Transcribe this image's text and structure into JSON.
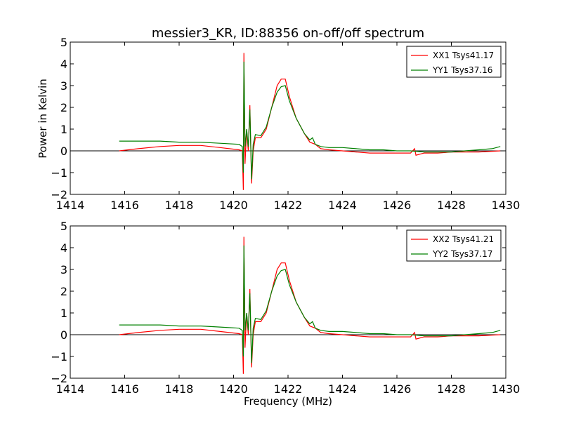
{
  "chart_data": [
    {
      "type": "line",
      "title": "messier3_KR, ID:88356 on-off/off spectrum",
      "xlabel": "",
      "ylabel": "Power in Kelvin",
      "xlim": [
        1414,
        1430
      ],
      "ylim": [
        -2,
        5
      ],
      "xticks": [
        1414,
        1416,
        1418,
        1420,
        1422,
        1424,
        1426,
        1428,
        1430
      ],
      "yticks": [
        -2,
        -1,
        0,
        1,
        2,
        3,
        4,
        5
      ],
      "grid": false,
      "legend_position": "top-right",
      "series": [
        {
          "name": "XX1 Tsys41.17",
          "color": "#ff0000",
          "points": [
            [
              1415.8,
              0.0
            ],
            [
              1416.5,
              0.1
            ],
            [
              1417.3,
              0.2
            ],
            [
              1418.0,
              0.25
            ],
            [
              1418.8,
              0.25
            ],
            [
              1419.5,
              0.15
            ],
            [
              1420.2,
              0.05
            ],
            [
              1420.32,
              0.0
            ],
            [
              1420.36,
              -1.8
            ],
            [
              1420.38,
              4.5
            ],
            [
              1420.42,
              -0.6
            ],
            [
              1420.48,
              1.0
            ],
            [
              1420.54,
              0.0
            ],
            [
              1420.6,
              2.1
            ],
            [
              1420.66,
              -1.5
            ],
            [
              1420.72,
              0.0
            ],
            [
              1420.8,
              0.6
            ],
            [
              1421.0,
              0.6
            ],
            [
              1421.2,
              1.0
            ],
            [
              1421.4,
              2.0
            ],
            [
              1421.6,
              3.0
            ],
            [
              1421.75,
              3.3
            ],
            [
              1421.9,
              3.3
            ],
            [
              1422.05,
              2.5
            ],
            [
              1422.3,
              1.5
            ],
            [
              1422.6,
              0.8
            ],
            [
              1422.8,
              0.4
            ],
            [
              1423.0,
              0.3
            ],
            [
              1423.2,
              0.1
            ],
            [
              1423.5,
              0.05
            ],
            [
              1424.0,
              0.0
            ],
            [
              1424.5,
              -0.05
            ],
            [
              1425.0,
              -0.1
            ],
            [
              1425.5,
              -0.1
            ],
            [
              1426.0,
              -0.1
            ],
            [
              1426.5,
              -0.1
            ],
            [
              1426.65,
              0.1
            ],
            [
              1426.7,
              -0.2
            ],
            [
              1427.0,
              -0.1
            ],
            [
              1427.5,
              -0.1
            ],
            [
              1428.0,
              -0.05
            ],
            [
              1428.5,
              -0.05
            ],
            [
              1429.0,
              -0.05
            ],
            [
              1429.8,
              0.0
            ]
          ]
        },
        {
          "name": "YY1 Tsys37.16",
          "color": "#008000",
          "points": [
            [
              1415.8,
              0.45
            ],
            [
              1416.5,
              0.45
            ],
            [
              1417.3,
              0.45
            ],
            [
              1418.0,
              0.4
            ],
            [
              1418.8,
              0.4
            ],
            [
              1419.5,
              0.35
            ],
            [
              1420.2,
              0.3
            ],
            [
              1420.32,
              0.2
            ],
            [
              1420.36,
              -1.0
            ],
            [
              1420.38,
              4.1
            ],
            [
              1420.42,
              0.2
            ],
            [
              1420.48,
              1.0
            ],
            [
              1420.54,
              0.2
            ],
            [
              1420.6,
              1.9
            ],
            [
              1420.66,
              -1.3
            ],
            [
              1420.72,
              0.3
            ],
            [
              1420.8,
              0.75
            ],
            [
              1421.0,
              0.7
            ],
            [
              1421.2,
              1.1
            ],
            [
              1421.4,
              2.0
            ],
            [
              1421.6,
              2.7
            ],
            [
              1421.75,
              2.95
            ],
            [
              1421.9,
              3.0
            ],
            [
              1422.05,
              2.3
            ],
            [
              1422.3,
              1.5
            ],
            [
              1422.6,
              0.8
            ],
            [
              1422.8,
              0.5
            ],
            [
              1422.9,
              0.6
            ],
            [
              1423.0,
              0.3
            ],
            [
              1423.2,
              0.2
            ],
            [
              1423.5,
              0.15
            ],
            [
              1424.0,
              0.15
            ],
            [
              1424.5,
              0.1
            ],
            [
              1425.0,
              0.05
            ],
            [
              1425.5,
              0.05
            ],
            [
              1426.0,
              0.0
            ],
            [
              1426.5,
              0.0
            ],
            [
              1427.0,
              -0.05
            ],
            [
              1427.5,
              -0.05
            ],
            [
              1428.0,
              -0.05
            ],
            [
              1428.5,
              0.0
            ],
            [
              1429.0,
              0.05
            ],
            [
              1429.5,
              0.1
            ],
            [
              1429.8,
              0.2
            ]
          ]
        }
      ]
    },
    {
      "type": "line",
      "title": "",
      "xlabel": "Frequency (MHz)",
      "ylabel": "",
      "xlim": [
        1414,
        1430
      ],
      "ylim": [
        -2,
        5
      ],
      "xticks": [
        1414,
        1416,
        1418,
        1420,
        1422,
        1424,
        1426,
        1428,
        1430
      ],
      "yticks": [
        -2,
        -1,
        0,
        1,
        2,
        3,
        4,
        5
      ],
      "grid": false,
      "legend_position": "top-right",
      "series": [
        {
          "name": "XX2 Tsys41.21",
          "color": "#ff0000",
          "points": [
            [
              1415.8,
              0.0
            ],
            [
              1416.5,
              0.1
            ],
            [
              1417.3,
              0.2
            ],
            [
              1418.0,
              0.25
            ],
            [
              1418.8,
              0.25
            ],
            [
              1419.5,
              0.15
            ],
            [
              1420.2,
              0.05
            ],
            [
              1420.32,
              0.0
            ],
            [
              1420.36,
              -1.8
            ],
            [
              1420.38,
              4.5
            ],
            [
              1420.42,
              -0.6
            ],
            [
              1420.48,
              1.0
            ],
            [
              1420.54,
              0.0
            ],
            [
              1420.6,
              2.1
            ],
            [
              1420.66,
              -1.5
            ],
            [
              1420.72,
              0.0
            ],
            [
              1420.8,
              0.6
            ],
            [
              1421.0,
              0.6
            ],
            [
              1421.2,
              1.0
            ],
            [
              1421.4,
              2.0
            ],
            [
              1421.6,
              3.0
            ],
            [
              1421.75,
              3.3
            ],
            [
              1421.9,
              3.3
            ],
            [
              1422.05,
              2.5
            ],
            [
              1422.3,
              1.5
            ],
            [
              1422.6,
              0.8
            ],
            [
              1422.8,
              0.4
            ],
            [
              1423.0,
              0.3
            ],
            [
              1423.2,
              0.1
            ],
            [
              1423.5,
              0.05
            ],
            [
              1424.0,
              0.0
            ],
            [
              1424.5,
              -0.05
            ],
            [
              1425.0,
              -0.1
            ],
            [
              1425.5,
              -0.1
            ],
            [
              1426.0,
              -0.1
            ],
            [
              1426.5,
              -0.1
            ],
            [
              1426.65,
              0.1
            ],
            [
              1426.7,
              -0.2
            ],
            [
              1427.0,
              -0.1
            ],
            [
              1427.5,
              -0.1
            ],
            [
              1428.0,
              -0.05
            ],
            [
              1428.5,
              -0.05
            ],
            [
              1429.0,
              -0.05
            ],
            [
              1429.8,
              0.0
            ]
          ]
        },
        {
          "name": "YY2 Tsys37.17",
          "color": "#008000",
          "points": [
            [
              1415.8,
              0.45
            ],
            [
              1416.5,
              0.45
            ],
            [
              1417.3,
              0.45
            ],
            [
              1418.0,
              0.4
            ],
            [
              1418.8,
              0.4
            ],
            [
              1419.5,
              0.35
            ],
            [
              1420.2,
              0.3
            ],
            [
              1420.32,
              0.2
            ],
            [
              1420.36,
              -1.0
            ],
            [
              1420.38,
              4.1
            ],
            [
              1420.42,
              0.2
            ],
            [
              1420.48,
              1.0
            ],
            [
              1420.54,
              0.2
            ],
            [
              1420.6,
              1.9
            ],
            [
              1420.66,
              -1.3
            ],
            [
              1420.72,
              0.3
            ],
            [
              1420.8,
              0.75
            ],
            [
              1421.0,
              0.7
            ],
            [
              1421.2,
              1.1
            ],
            [
              1421.4,
              2.0
            ],
            [
              1421.6,
              2.7
            ],
            [
              1421.75,
              2.95
            ],
            [
              1421.9,
              3.0
            ],
            [
              1422.05,
              2.3
            ],
            [
              1422.3,
              1.5
            ],
            [
              1422.6,
              0.8
            ],
            [
              1422.8,
              0.5
            ],
            [
              1422.9,
              0.6
            ],
            [
              1423.0,
              0.3
            ],
            [
              1423.2,
              0.2
            ],
            [
              1423.5,
              0.15
            ],
            [
              1424.0,
              0.15
            ],
            [
              1424.5,
              0.1
            ],
            [
              1425.0,
              0.05
            ],
            [
              1425.5,
              0.05
            ],
            [
              1426.0,
              0.0
            ],
            [
              1426.5,
              0.0
            ],
            [
              1427.0,
              -0.05
            ],
            [
              1427.5,
              -0.05
            ],
            [
              1428.0,
              -0.05
            ],
            [
              1428.5,
              0.0
            ],
            [
              1429.0,
              0.05
            ],
            [
              1429.5,
              0.1
            ],
            [
              1429.8,
              0.2
            ]
          ]
        }
      ]
    }
  ]
}
